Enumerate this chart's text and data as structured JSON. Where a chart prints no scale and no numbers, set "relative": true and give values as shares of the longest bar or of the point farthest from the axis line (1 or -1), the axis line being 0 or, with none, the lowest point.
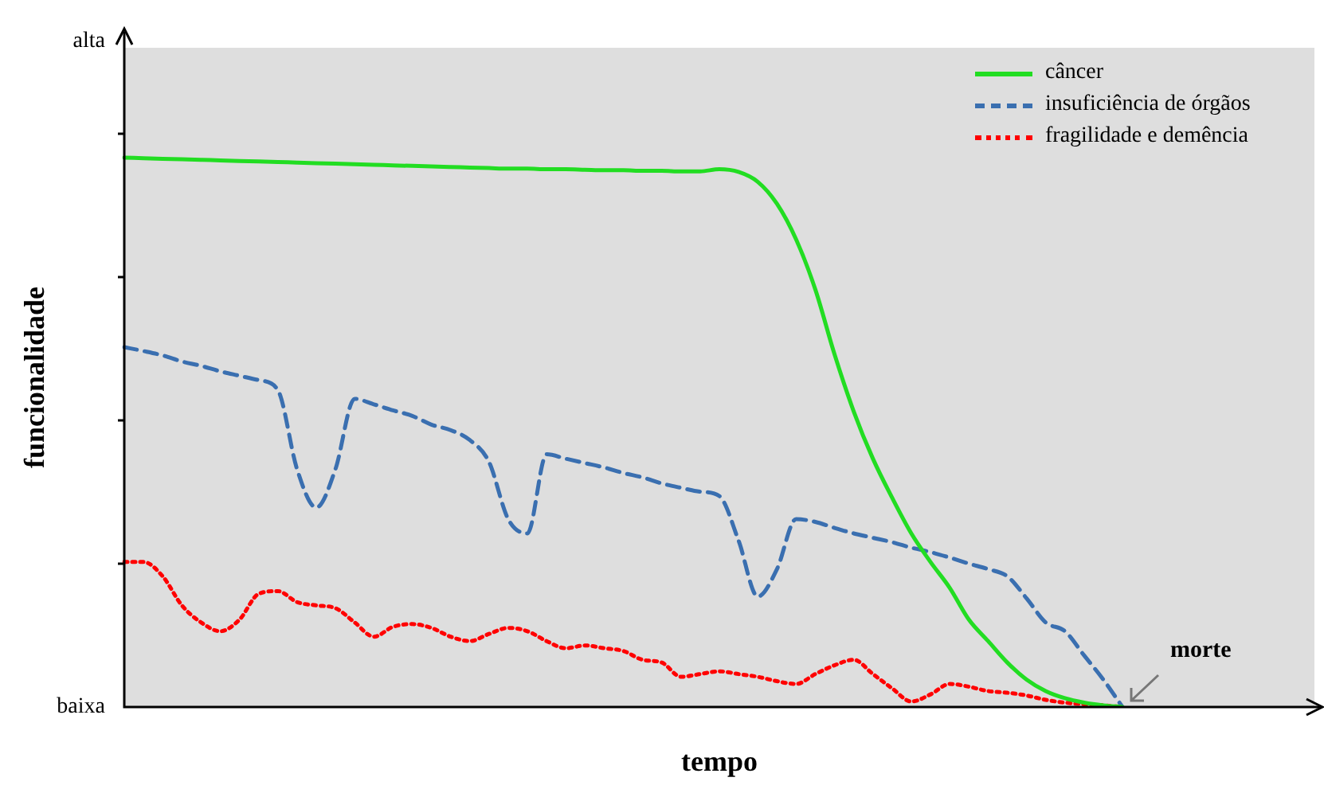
{
  "chart_data": {
    "type": "line",
    "relative": true,
    "xlabel": "tempo",
    "ylabel": "funcionalidade",
    "categories": [
      null,
      null,
      null,
      null,
      null,
      null,
      null,
      null,
      null,
      null,
      null,
      null,
      null,
      null,
      null,
      null,
      null,
      null,
      null,
      null,
      null,
      null,
      null,
      null,
      null,
      null,
      null,
      null,
      null,
      null,
      null,
      null,
      null,
      null,
      null,
      null,
      null,
      null,
      null,
      null,
      null,
      null,
      null,
      null,
      null,
      null,
      null,
      null,
      null,
      null,
      null,
      null,
      null,
      null,
      null,
      null,
      null,
      null,
      null,
      null,
      null,
      null,
      null
    ],
    "series": [
      {
        "name": "câncer",
        "color": "#22dd22",
        "line_style": "solid",
        "values": [
          1.0,
          0.999,
          0.998,
          0.997,
          0.996,
          0.995,
          0.994,
          0.993,
          0.992,
          0.991,
          0.99,
          0.989,
          0.988,
          0.987,
          0.986,
          0.985,
          0.984,
          0.983,
          0.982,
          0.981,
          0.98,
          0.98,
          0.979,
          0.979,
          0.978,
          0.977,
          0.977,
          0.976,
          0.976,
          0.975,
          0.975,
          0.979,
          0.974,
          0.956,
          0.916,
          0.851,
          0.76,
          0.642,
          0.538,
          0.452,
          0.381,
          0.316,
          0.264,
          0.217,
          0.159,
          0.12,
          0.081,
          0.05,
          0.029,
          0.016,
          0.008,
          0.003,
          0,
          null,
          null,
          null,
          null,
          null,
          null,
          null,
          null,
          null,
          null
        ]
      },
      {
        "name": "insuficiência de órgãos",
        "color": "#3a6fb0",
        "line_style": "dashed",
        "values": [
          0.655,
          0.648,
          0.64,
          0.629,
          0.621,
          0.611,
          0.603,
          0.595,
          0.577,
          0.433,
          0.363,
          0.433,
          0.561,
          0.551,
          0.54,
          0.53,
          0.514,
          0.504,
          0.486,
          0.446,
          0.342,
          0.316,
          0.46,
          0.452,
          0.444,
          0.436,
          0.426,
          0.418,
          0.407,
          0.399,
          0.392,
          0.384,
          0.303,
          0.201,
          0.251,
          0.342,
          0.337,
          0.326,
          0.316,
          0.308,
          0.3,
          0.29,
          0.282,
          0.272,
          0.261,
          0.251,
          0.238,
          0.198,
          0.154,
          0.138,
          0.094,
          0.05,
          0,
          null,
          null,
          null,
          null,
          null,
          null,
          null,
          null,
          null,
          null
        ]
      },
      {
        "name": "fragilidade e demência",
        "color": "#ff0000",
        "line_style": "dotted",
        "values": [
          0.264,
          0.264,
          0.238,
          0.185,
          0.154,
          0.138,
          0.159,
          0.206,
          0.211,
          0.191,
          0.185,
          0.18,
          0.154,
          0.128,
          0.146,
          0.151,
          0.144,
          0.128,
          0.12,
          0.133,
          0.144,
          0.138,
          0.12,
          0.107,
          0.112,
          0.107,
          0.102,
          0.086,
          0.081,
          0.055,
          0.06,
          0.065,
          0.06,
          0.055,
          0.047,
          0.042,
          0.06,
          0.076,
          0.086,
          0.06,
          0.034,
          0.01,
          0.023,
          0.042,
          0.037,
          0.029,
          0.026,
          0.021,
          0.013,
          0.008,
          0.005,
          0.003,
          0,
          null,
          null,
          null,
          null,
          null,
          null,
          null,
          null,
          null,
          null
        ]
      }
    ],
    "annotations": [
      "alta",
      "baixa",
      "morte"
    ],
    "legend": "top right",
    "marker": "none",
    "grid": false
  }
}
